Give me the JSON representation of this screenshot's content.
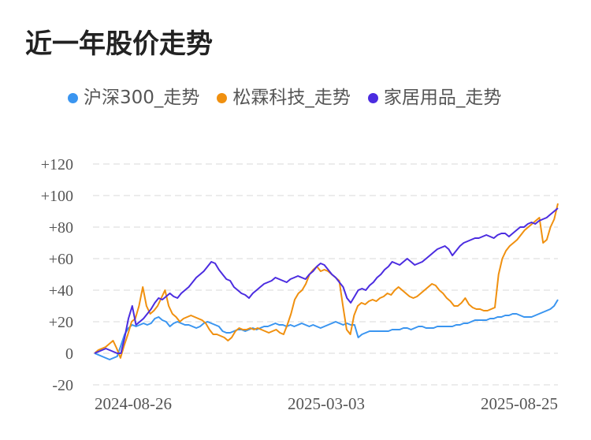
{
  "title": "近一年股价走势",
  "chart_data": {
    "type": "line",
    "title": "近一年股价走势",
    "xlabel": "",
    "ylabel": "",
    "ylim": [
      -20,
      120
    ],
    "yticks": [
      -20,
      0,
      20,
      40,
      60,
      80,
      100,
      120
    ],
    "ytick_labels": [
      "-20",
      "0",
      "+20",
      "+40",
      "+60",
      "+80",
      "+100",
      "+120"
    ],
    "xtick_labels": [
      "2024-08-26",
      "2025-03-03",
      "2025-08-25"
    ],
    "grid": true,
    "legend_position": "top",
    "series": [
      {
        "name": "沪深300_走势",
        "color": "#3a95f0",
        "values": [
          0,
          -1,
          -2,
          -3,
          -4,
          -3,
          -2,
          5,
          12,
          16,
          18,
          17,
          18,
          19,
          18,
          19,
          22,
          23,
          21,
          20,
          17,
          19,
          20,
          19,
          18,
          18,
          17,
          16,
          17,
          19,
          20,
          19,
          18,
          17,
          14,
          13,
          13,
          14,
          15,
          15,
          14,
          15,
          16,
          15,
          16,
          17,
          17,
          18,
          19,
          18,
          18,
          17,
          18,
          17,
          18,
          19,
          18,
          17,
          18,
          17,
          16,
          17,
          18,
          19,
          20,
          19,
          18,
          19,
          18,
          18,
          10,
          12,
          13,
          14,
          14,
          14,
          14,
          14,
          14,
          15,
          15,
          15,
          16,
          16,
          15,
          16,
          17,
          17,
          16,
          16,
          16,
          17,
          17,
          17,
          17,
          17,
          18,
          18,
          19,
          19,
          20,
          21,
          21,
          21,
          21,
          22,
          22,
          23,
          23,
          24,
          24,
          25,
          25,
          24,
          23,
          23,
          23,
          24,
          25,
          26,
          27,
          28,
          30,
          34
        ]
      },
      {
        "name": "松霖科技_走势",
        "color": "#f0900f",
        "values": [
          0,
          2,
          3,
          4,
          6,
          8,
          3,
          -3,
          5,
          12,
          20,
          22,
          30,
          42,
          30,
          25,
          27,
          30,
          35,
          40,
          30,
          25,
          23,
          20,
          22,
          23,
          24,
          23,
          22,
          21,
          19,
          15,
          12,
          12,
          11,
          10,
          8,
          10,
          14,
          16,
          15,
          15,
          16,
          15,
          16,
          15,
          14,
          13,
          14,
          15,
          13,
          12,
          18,
          25,
          34,
          38,
          40,
          44,
          50,
          53,
          55,
          52,
          53,
          52,
          50,
          48,
          46,
          30,
          15,
          12,
          24,
          30,
          32,
          31,
          33,
          34,
          33,
          35,
          36,
          38,
          37,
          40,
          42,
          40,
          38,
          36,
          35,
          36,
          38,
          40,
          42,
          44,
          43,
          40,
          38,
          35,
          33,
          30,
          30,
          32,
          35,
          31,
          29,
          28,
          28,
          27,
          27,
          28,
          29,
          50,
          60,
          65,
          68,
          70,
          72,
          75,
          78,
          80,
          82,
          84,
          86,
          70,
          72,
          80,
          85,
          95
        ]
      },
      {
        "name": "家居用品_走势",
        "color": "#4b2ce0",
        "values": [
          0,
          1,
          2,
          3,
          2,
          1,
          0,
          0,
          10,
          22,
          30,
          18,
          20,
          22,
          25,
          28,
          32,
          35,
          34,
          36,
          38,
          36,
          35,
          38,
          40,
          42,
          45,
          48,
          50,
          52,
          55,
          58,
          57,
          53,
          50,
          47,
          46,
          42,
          40,
          38,
          37,
          35,
          38,
          40,
          42,
          44,
          45,
          46,
          48,
          47,
          46,
          45,
          47,
          48,
          49,
          48,
          47,
          50,
          52,
          55,
          57,
          56,
          53,
          50,
          48,
          45,
          42,
          35,
          32,
          36,
          40,
          41,
          40,
          43,
          45,
          48,
          50,
          53,
          55,
          58,
          57,
          56,
          58,
          60,
          58,
          56,
          57,
          58,
          60,
          62,
          64,
          66,
          67,
          68,
          66,
          62,
          65,
          68,
          70,
          71,
          72,
          73,
          73,
          74,
          75,
          74,
          73,
          75,
          76,
          76,
          74,
          76,
          78,
          80,
          80,
          82,
          83,
          82,
          84,
          85,
          86,
          88,
          90,
          92
        ]
      }
    ]
  }
}
